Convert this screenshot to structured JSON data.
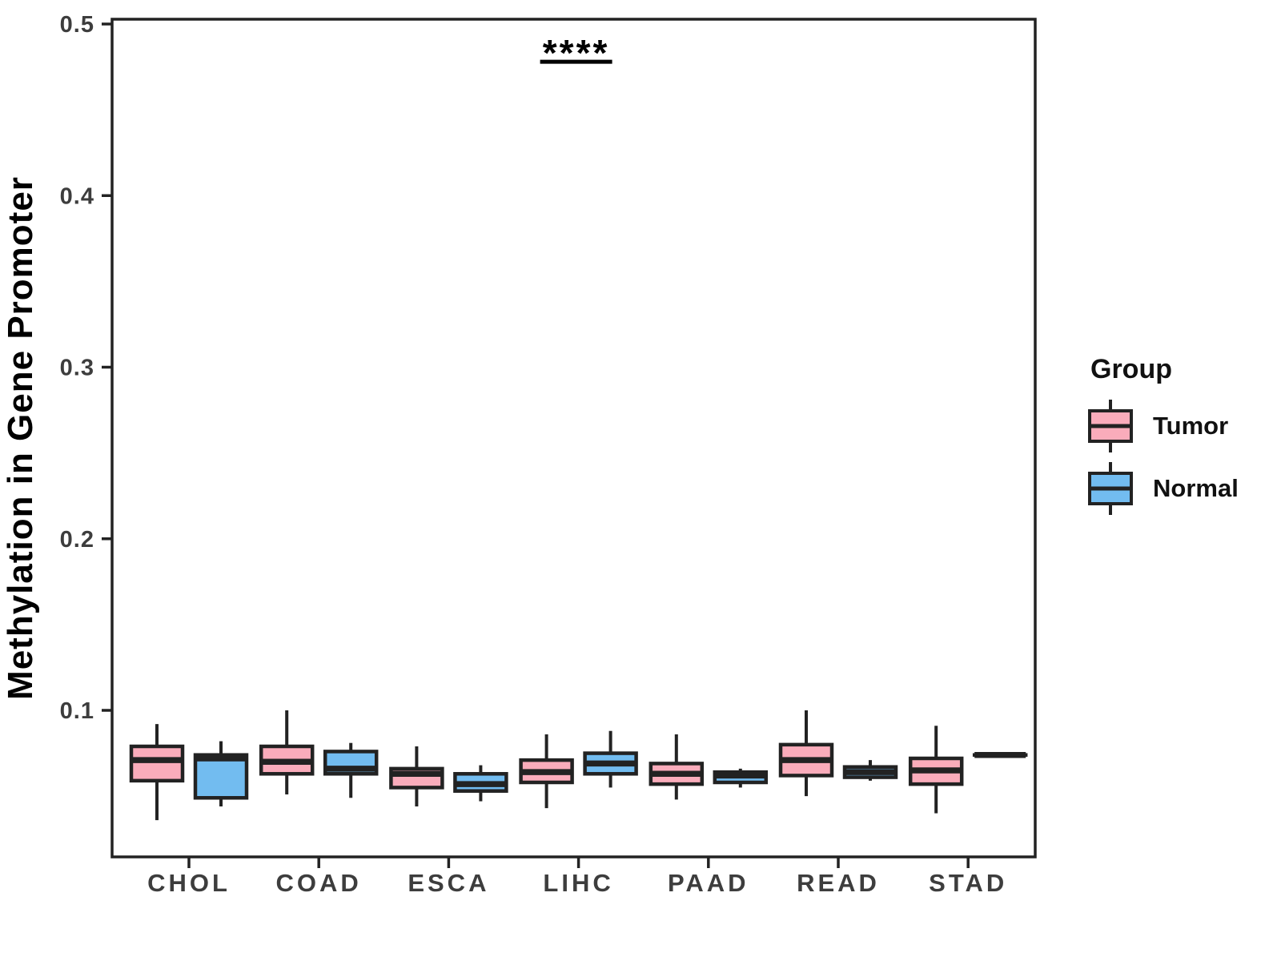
{
  "chart_data": {
    "type": "boxplot",
    "title": "",
    "xlabel": "",
    "ylabel": "Methylation in Gene Promoter",
    "categories": [
      "CHOL",
      "COAD",
      "ESCA",
      "LIHC",
      "PAAD",
      "READ",
      "STAD"
    ],
    "yticks": [
      0.1,
      0.2,
      0.3,
      0.4,
      0.5
    ],
    "ylim": [
      0.015,
      0.502
    ],
    "grid": false,
    "legend_position": "right",
    "series": [
      {
        "name": "Tumor",
        "color": "#FAACBB",
        "boxes": [
          {
            "low": 0.036,
            "q1": 0.059,
            "median": 0.071,
            "q3": 0.079,
            "high": 0.092
          },
          {
            "low": 0.051,
            "q1": 0.063,
            "median": 0.07,
            "q3": 0.079,
            "high": 0.1
          },
          {
            "low": 0.044,
            "q1": 0.055,
            "median": 0.063,
            "q3": 0.066,
            "high": 0.079
          },
          {
            "low": 0.043,
            "q1": 0.058,
            "median": 0.064,
            "q3": 0.071,
            "high": 0.086
          },
          {
            "low": 0.048,
            "q1": 0.057,
            "median": 0.063,
            "q3": 0.069,
            "high": 0.086
          },
          {
            "low": 0.05,
            "q1": 0.062,
            "median": 0.071,
            "q3": 0.08,
            "high": 0.1
          },
          {
            "low": 0.04,
            "q1": 0.057,
            "median": 0.065,
            "q3": 0.072,
            "high": 0.091
          }
        ]
      },
      {
        "name": "Normal",
        "color": "#72BCF0",
        "boxes": [
          {
            "low": 0.044,
            "q1": 0.049,
            "median": 0.072,
            "q3": 0.074,
            "high": 0.082
          },
          {
            "low": 0.049,
            "q1": 0.063,
            "median": 0.066,
            "q3": 0.076,
            "high": 0.081
          },
          {
            "low": 0.047,
            "q1": 0.053,
            "median": 0.057,
            "q3": 0.063,
            "high": 0.068
          },
          {
            "low": 0.055,
            "q1": 0.063,
            "median": 0.069,
            "q3": 0.075,
            "high": 0.088
          },
          {
            "low": 0.055,
            "q1": 0.058,
            "median": 0.062,
            "q3": 0.064,
            "high": 0.066
          },
          {
            "low": 0.059,
            "q1": 0.061,
            "median": 0.064,
            "q3": 0.067,
            "high": 0.071
          },
          {
            "low": 0.074,
            "q1": 0.074,
            "median": 0.074,
            "q3": 0.074,
            "high": 0.074
          }
        ]
      }
    ],
    "significance": {
      "text": "****",
      "category": "LIHC",
      "y": 0.478
    }
  },
  "legend": {
    "title": "Group",
    "items": [
      {
        "label": "Tumor",
        "color": "#FAACBB"
      },
      {
        "label": "Normal",
        "color": "#72BCF0"
      }
    ]
  },
  "style": {
    "box_border": "#222222",
    "axis_color": "#222222",
    "tick_label_color": "#3D3D3D",
    "annotation_color": "#000000"
  }
}
